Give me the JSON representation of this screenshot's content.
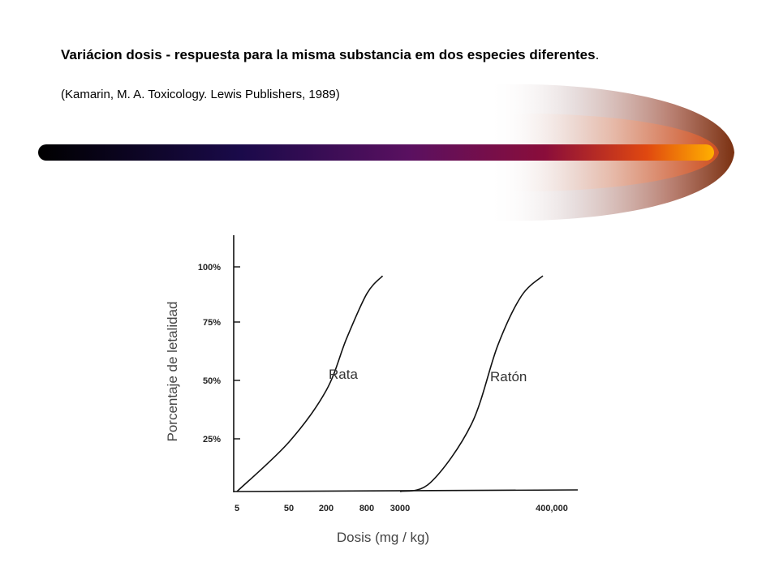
{
  "slide": {
    "title": "Variácion dosis - respuesta para la misma substancia em dos especies  diferentes",
    "title_end": ".",
    "citation": "(Kamarin, M. A. Toxicology. Lewis Publishers, 1989)"
  },
  "colors": {
    "banner_stops": [
      "#000000",
      "#1a0a4a",
      "#5a1060",
      "#8a0d3a",
      "#e04810",
      "#ffb000"
    ],
    "banner_halo": "#7a3010",
    "curve": "#111111"
  },
  "chart_data": {
    "type": "line",
    "xlabel": "Dosis (mg / kg)",
    "ylabel": "Porcentaje de letalidad",
    "x_tick_labels": [
      "5",
      "50",
      "200",
      "800",
      "3000",
      "400,000"
    ],
    "y_tick_labels": [
      "25%",
      "50%",
      "75%",
      "100%"
    ],
    "ylim": [
      0,
      100
    ],
    "series": [
      {
        "name": "Rata",
        "points": [
          [
            5,
            0
          ],
          [
            50,
            22
          ],
          [
            200,
            45
          ],
          [
            400,
            68
          ],
          [
            800,
            88
          ],
          [
            1500,
            96
          ]
        ]
      },
      {
        "name": "Ratón",
        "points": [
          [
            3000,
            0
          ],
          [
            8000,
            4
          ],
          [
            30000,
            30
          ],
          [
            70000,
            65
          ],
          [
            150000,
            87
          ],
          [
            300000,
            96
          ]
        ]
      }
    ]
  }
}
